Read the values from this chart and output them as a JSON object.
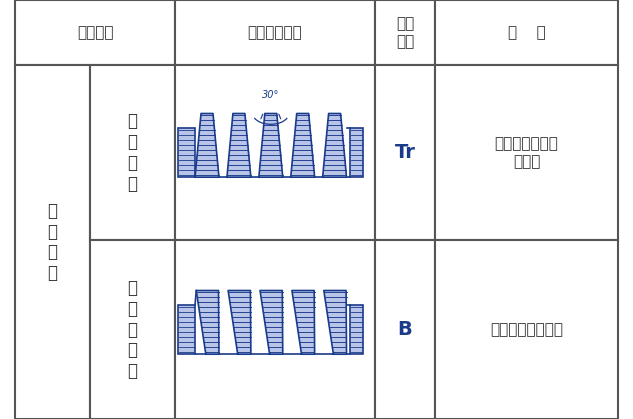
{
  "bg_color": "#ffffff",
  "border_color": "#333333",
  "line_color": "#4a4a8a",
  "fill_color": "#b8c4e8",
  "hatch_color": "#4a4a8a",
  "text_color": "#333333",
  "title_row": {
    "col1": "螺纹分类",
    "col2": "牙形及牙形角",
    "col3": "牙形\n符号",
    "col4": "说    明"
  },
  "row1": {
    "col1a": "传\n动\n螺\n纹",
    "col1b": "梯\n形\n螺\n纹",
    "col3": "Tr",
    "col4": "可双向传递运动\n和动力",
    "angle_label": "30°"
  },
  "row2": {
    "col1b": "锯\n齿\n形\n螺\n纹",
    "col3": "B",
    "col4": "只能传递单向动力"
  },
  "figsize": [
    6.33,
    4.19
  ],
  "dpi": 100
}
